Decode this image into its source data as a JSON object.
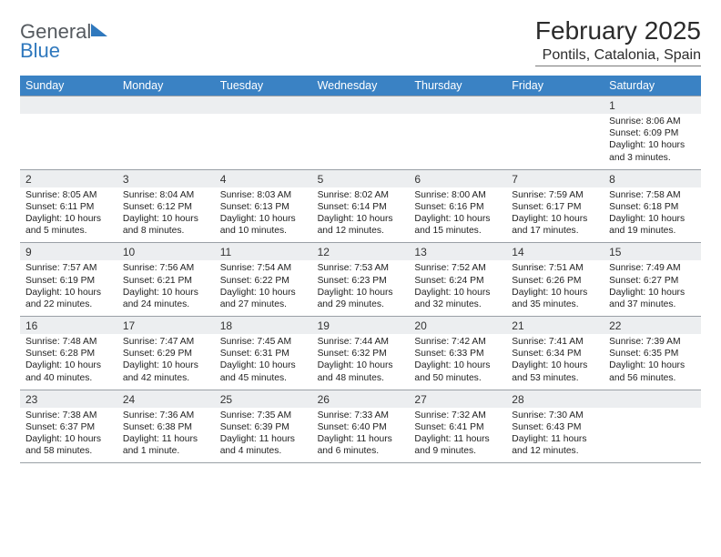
{
  "brand": {
    "word1": "General",
    "word2": "Blue"
  },
  "header": {
    "title": "February 2025",
    "location": "Pontils, Catalonia, Spain"
  },
  "styling": {
    "dow_bg": "#3a82c4",
    "dow_text": "#ffffff",
    "band_bg": "#eceef0",
    "rule_color": "#9aa0a6",
    "title_fontsize": 28,
    "location_fontsize": 16,
    "dow_fontsize": 12.5,
    "daynum_fontsize": 12,
    "body_fontsize": 10.3,
    "page_bg": "#ffffff",
    "text_color": "#222222",
    "logo_gray": "#555a5f",
    "logo_blue": "#2f78bd"
  },
  "days_of_week": [
    "Sunday",
    "Monday",
    "Tuesday",
    "Wednesday",
    "Thursday",
    "Friday",
    "Saturday"
  ],
  "weeks": [
    [
      {
        "n": "",
        "sunrise": "",
        "sunset": "",
        "daylight": ""
      },
      {
        "n": "",
        "sunrise": "",
        "sunset": "",
        "daylight": ""
      },
      {
        "n": "",
        "sunrise": "",
        "sunset": "",
        "daylight": ""
      },
      {
        "n": "",
        "sunrise": "",
        "sunset": "",
        "daylight": ""
      },
      {
        "n": "",
        "sunrise": "",
        "sunset": "",
        "daylight": ""
      },
      {
        "n": "",
        "sunrise": "",
        "sunset": "",
        "daylight": ""
      },
      {
        "n": "1",
        "sunrise": "Sunrise: 8:06 AM",
        "sunset": "Sunset: 6:09 PM",
        "daylight": "Daylight: 10 hours and 3 minutes."
      }
    ],
    [
      {
        "n": "2",
        "sunrise": "Sunrise: 8:05 AM",
        "sunset": "Sunset: 6:11 PM",
        "daylight": "Daylight: 10 hours and 5 minutes."
      },
      {
        "n": "3",
        "sunrise": "Sunrise: 8:04 AM",
        "sunset": "Sunset: 6:12 PM",
        "daylight": "Daylight: 10 hours and 8 minutes."
      },
      {
        "n": "4",
        "sunrise": "Sunrise: 8:03 AM",
        "sunset": "Sunset: 6:13 PM",
        "daylight": "Daylight: 10 hours and 10 minutes."
      },
      {
        "n": "5",
        "sunrise": "Sunrise: 8:02 AM",
        "sunset": "Sunset: 6:14 PM",
        "daylight": "Daylight: 10 hours and 12 minutes."
      },
      {
        "n": "6",
        "sunrise": "Sunrise: 8:00 AM",
        "sunset": "Sunset: 6:16 PM",
        "daylight": "Daylight: 10 hours and 15 minutes."
      },
      {
        "n": "7",
        "sunrise": "Sunrise: 7:59 AM",
        "sunset": "Sunset: 6:17 PM",
        "daylight": "Daylight: 10 hours and 17 minutes."
      },
      {
        "n": "8",
        "sunrise": "Sunrise: 7:58 AM",
        "sunset": "Sunset: 6:18 PM",
        "daylight": "Daylight: 10 hours and 19 minutes."
      }
    ],
    [
      {
        "n": "9",
        "sunrise": "Sunrise: 7:57 AM",
        "sunset": "Sunset: 6:19 PM",
        "daylight": "Daylight: 10 hours and 22 minutes."
      },
      {
        "n": "10",
        "sunrise": "Sunrise: 7:56 AM",
        "sunset": "Sunset: 6:21 PM",
        "daylight": "Daylight: 10 hours and 24 minutes."
      },
      {
        "n": "11",
        "sunrise": "Sunrise: 7:54 AM",
        "sunset": "Sunset: 6:22 PM",
        "daylight": "Daylight: 10 hours and 27 minutes."
      },
      {
        "n": "12",
        "sunrise": "Sunrise: 7:53 AM",
        "sunset": "Sunset: 6:23 PM",
        "daylight": "Daylight: 10 hours and 29 minutes."
      },
      {
        "n": "13",
        "sunrise": "Sunrise: 7:52 AM",
        "sunset": "Sunset: 6:24 PM",
        "daylight": "Daylight: 10 hours and 32 minutes."
      },
      {
        "n": "14",
        "sunrise": "Sunrise: 7:51 AM",
        "sunset": "Sunset: 6:26 PM",
        "daylight": "Daylight: 10 hours and 35 minutes."
      },
      {
        "n": "15",
        "sunrise": "Sunrise: 7:49 AM",
        "sunset": "Sunset: 6:27 PM",
        "daylight": "Daylight: 10 hours and 37 minutes."
      }
    ],
    [
      {
        "n": "16",
        "sunrise": "Sunrise: 7:48 AM",
        "sunset": "Sunset: 6:28 PM",
        "daylight": "Daylight: 10 hours and 40 minutes."
      },
      {
        "n": "17",
        "sunrise": "Sunrise: 7:47 AM",
        "sunset": "Sunset: 6:29 PM",
        "daylight": "Daylight: 10 hours and 42 minutes."
      },
      {
        "n": "18",
        "sunrise": "Sunrise: 7:45 AM",
        "sunset": "Sunset: 6:31 PM",
        "daylight": "Daylight: 10 hours and 45 minutes."
      },
      {
        "n": "19",
        "sunrise": "Sunrise: 7:44 AM",
        "sunset": "Sunset: 6:32 PM",
        "daylight": "Daylight: 10 hours and 48 minutes."
      },
      {
        "n": "20",
        "sunrise": "Sunrise: 7:42 AM",
        "sunset": "Sunset: 6:33 PM",
        "daylight": "Daylight: 10 hours and 50 minutes."
      },
      {
        "n": "21",
        "sunrise": "Sunrise: 7:41 AM",
        "sunset": "Sunset: 6:34 PM",
        "daylight": "Daylight: 10 hours and 53 minutes."
      },
      {
        "n": "22",
        "sunrise": "Sunrise: 7:39 AM",
        "sunset": "Sunset: 6:35 PM",
        "daylight": "Daylight: 10 hours and 56 minutes."
      }
    ],
    [
      {
        "n": "23",
        "sunrise": "Sunrise: 7:38 AM",
        "sunset": "Sunset: 6:37 PM",
        "daylight": "Daylight: 10 hours and 58 minutes."
      },
      {
        "n": "24",
        "sunrise": "Sunrise: 7:36 AM",
        "sunset": "Sunset: 6:38 PM",
        "daylight": "Daylight: 11 hours and 1 minute."
      },
      {
        "n": "25",
        "sunrise": "Sunrise: 7:35 AM",
        "sunset": "Sunset: 6:39 PM",
        "daylight": "Daylight: 11 hours and 4 minutes."
      },
      {
        "n": "26",
        "sunrise": "Sunrise: 7:33 AM",
        "sunset": "Sunset: 6:40 PM",
        "daylight": "Daylight: 11 hours and 6 minutes."
      },
      {
        "n": "27",
        "sunrise": "Sunrise: 7:32 AM",
        "sunset": "Sunset: 6:41 PM",
        "daylight": "Daylight: 11 hours and 9 minutes."
      },
      {
        "n": "28",
        "sunrise": "Sunrise: 7:30 AM",
        "sunset": "Sunset: 6:43 PM",
        "daylight": "Daylight: 11 hours and 12 minutes."
      },
      {
        "n": "",
        "sunrise": "",
        "sunset": "",
        "daylight": ""
      }
    ]
  ]
}
